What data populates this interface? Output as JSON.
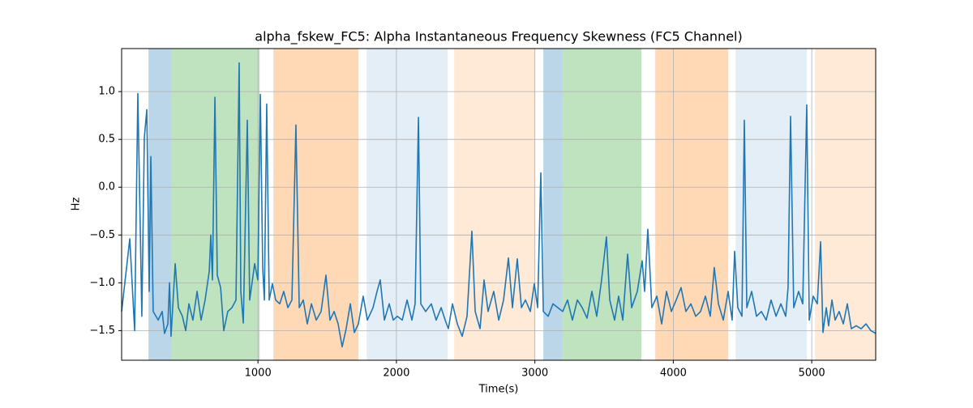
{
  "chart_data": {
    "type": "line",
    "title": "alpha_fskew_FC5: Alpha Instantaneous Frequency Skewness (FC5 Channel)",
    "x_label": "Time(s)",
    "y_label": "Hz",
    "color": "#1f77b4",
    "grid": true,
    "xlim": [
      15,
      5462
    ],
    "ylim": [
      -1.81,
      1.45
    ],
    "xticks": [
      1000,
      2000,
      3000,
      4000,
      5000
    ],
    "yticks": [
      {
        "value": -1.5,
        "label": "−1.5"
      },
      {
        "value": -1.0,
        "label": "−1.0"
      },
      {
        "value": -0.5,
        "label": "−0.5"
      },
      {
        "value": 0.0,
        "label": "0.0"
      },
      {
        "value": 0.5,
        "label": "0.5"
      },
      {
        "value": 1.0,
        "label": "1.0"
      }
    ],
    "spans": [
      {
        "start": 209,
        "end": 373,
        "color": "#1f77b4",
        "alpha": 0.3
      },
      {
        "start": 373,
        "end": 1012,
        "color": "#2ca02c",
        "alpha": 0.3
      },
      {
        "start": 1111,
        "end": 1726,
        "color": "#ff7f0e",
        "alpha": 0.3
      },
      {
        "start": 1785,
        "end": 2370,
        "color": "#1f77b4",
        "alpha": 0.12
      },
      {
        "start": 2417,
        "end": 3003,
        "color": "#ff7f0e",
        "alpha": 0.16
      },
      {
        "start": 3061,
        "end": 3196,
        "color": "#1f77b4",
        "alpha": 0.3
      },
      {
        "start": 3196,
        "end": 3770,
        "color": "#2ca02c",
        "alpha": 0.3
      },
      {
        "start": 3870,
        "end": 4397,
        "color": "#ff7f0e",
        "alpha": 0.3
      },
      {
        "start": 4450,
        "end": 4965,
        "color": "#1f77b4",
        "alpha": 0.12
      },
      {
        "start": 5023,
        "end": 5462,
        "color": "#ff7f0e",
        "alpha": 0.16
      }
    ],
    "x": [
      15,
      74,
      109,
      132,
      161,
      179,
      197,
      214,
      226,
      243,
      279,
      308,
      325,
      349,
      361,
      372,
      402,
      425,
      454,
      478,
      501,
      530,
      560,
      589,
      618,
      648,
      659,
      671,
      689,
      706,
      730,
      753,
      782,
      812,
      841,
      864,
      876,
      894,
      923,
      940,
      976,
      999,
      1017,
      1034,
      1046,
      1063,
      1081,
      1104,
      1128,
      1157,
      1186,
      1216,
      1245,
      1274,
      1298,
      1327,
      1356,
      1386,
      1421,
      1456,
      1491,
      1520,
      1550,
      1579,
      1608,
      1637,
      1667,
      1696,
      1725,
      1760,
      1790,
      1831,
      1860,
      1883,
      1913,
      1948,
      1977,
      2006,
      2042,
      2077,
      2112,
      2135,
      2159,
      2176,
      2211,
      2252,
      2287,
      2323,
      2352,
      2375,
      2405,
      2440,
      2475,
      2510,
      2545,
      2569,
      2604,
      2633,
      2662,
      2703,
      2739,
      2774,
      2809,
      2838,
      2873,
      2903,
      2932,
      2967,
      2996,
      3020,
      3043,
      3061,
      3096,
      3131,
      3166,
      3201,
      3236,
      3271,
      3307,
      3342,
      3377,
      3412,
      3447,
      3482,
      3517,
      3541,
      3576,
      3605,
      3635,
      3670,
      3699,
      3740,
      3775,
      3793,
      3816,
      3845,
      3881,
      3916,
      3951,
      3986,
      4021,
      4056,
      4091,
      4127,
      4162,
      4197,
      4232,
      4267,
      4296,
      4326,
      4361,
      4396,
      4425,
      4443,
      4466,
      4496,
      4513,
      4531,
      4566,
      4601,
      4636,
      4671,
      4706,
      4742,
      4777,
      4812,
      4829,
      4847,
      4870,
      4905,
      4935,
      4964,
      4982,
      5011,
      5040,
      5064,
      5081,
      5105,
      5122,
      5146,
      5169,
      5198,
      5228,
      5257,
      5286,
      5321,
      5357,
      5392,
      5427,
      5462
    ],
    "values": [
      -1.3,
      -0.54,
      -1.5,
      0.98,
      -1.35,
      0.52,
      0.81,
      -1.09,
      0.32,
      -1.3,
      -1.39,
      -1.3,
      -1.53,
      -1.43,
      -1.0,
      -1.56,
      -0.8,
      -1.26,
      -1.35,
      -1.5,
      -1.22,
      -1.39,
      -1.09,
      -1.39,
      -1.18,
      -0.88,
      -0.5,
      -0.97,
      0.94,
      -0.92,
      -1.05,
      -1.5,
      -1.3,
      -1.26,
      -1.18,
      1.3,
      -1.09,
      -1.42,
      0.7,
      -1.18,
      -0.8,
      -0.97,
      0.97,
      -0.84,
      -1.18,
      0.87,
      -1.18,
      -1.01,
      -1.18,
      -1.22,
      -1.09,
      -1.26,
      -1.18,
      0.65,
      -1.26,
      -1.18,
      -1.43,
      -1.22,
      -1.39,
      -1.3,
      -0.92,
      -1.39,
      -1.3,
      -1.43,
      -1.67,
      -1.48,
      -1.22,
      -1.52,
      -1.43,
      -1.14,
      -1.39,
      -1.26,
      -1.09,
      -0.97,
      -1.39,
      -1.22,
      -1.39,
      -1.35,
      -1.39,
      -1.18,
      -1.39,
      -1.22,
      0.73,
      -1.22,
      -1.3,
      -1.22,
      -1.39,
      -1.26,
      -1.39,
      -1.48,
      -1.22,
      -1.43,
      -1.56,
      -1.35,
      -0.46,
      -1.3,
      -1.48,
      -0.97,
      -1.3,
      -1.09,
      -1.39,
      -1.18,
      -0.74,
      -1.26,
      -0.75,
      -1.26,
      -1.18,
      -1.3,
      -1.01,
      -1.26,
      0.15,
      -1.3,
      -1.35,
      -1.22,
      -1.26,
      -1.3,
      -1.18,
      -1.39,
      -1.18,
      -1.26,
      -1.37,
      -1.09,
      -1.35,
      -0.97,
      -0.52,
      -1.18,
      -1.39,
      -1.14,
      -1.39,
      -0.7,
      -1.26,
      -1.09,
      -0.77,
      -1.09,
      -0.44,
      -1.26,
      -1.14,
      -1.43,
      -1.09,
      -1.3,
      -1.18,
      -1.05,
      -1.3,
      -1.22,
      -1.35,
      -1.3,
      -1.14,
      -1.35,
      -0.84,
      -1.22,
      -1.39,
      -1.09,
      -1.39,
      -0.67,
      -1.26,
      -1.35,
      0.7,
      -1.26,
      -1.09,
      -1.35,
      -1.3,
      -1.39,
      -1.18,
      -1.35,
      -1.22,
      -1.35,
      -1.05,
      0.74,
      -1.26,
      -1.09,
      -1.22,
      0.86,
      -1.39,
      -1.14,
      -1.22,
      -0.57,
      -1.52,
      -1.26,
      -1.45,
      -1.18,
      -1.39,
      -1.3,
      -1.43,
      -1.22,
      -1.48,
      -1.45,
      -1.48,
      -1.43,
      -1.5,
      -1.53
    ]
  }
}
